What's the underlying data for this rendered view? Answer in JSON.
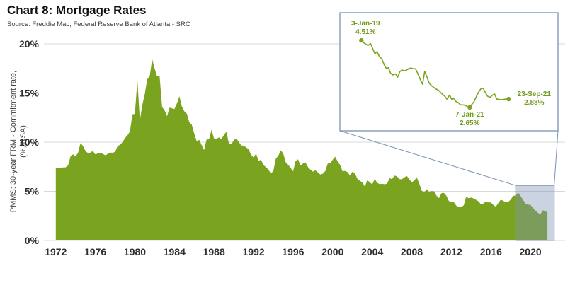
{
  "title": "Chart 8: Mortgage Rates",
  "source": "Source: Freddie Mac; Federal Reserve Bank of Atlanta - SRC",
  "y_axis_label_line1": "PMMS: 30-year FRM - Commitment rate,",
  "y_axis_label_line2": "(%, NSA)",
  "colors": {
    "area": "#7AA420",
    "annotation": "#6F9A1B",
    "grid": "#D8D8D8",
    "axis_text": "#2E2E2E",
    "callout": "#7C92B5",
    "highlight_fill": "rgba(124,146,181,0.40)"
  },
  "chart_data": {
    "type": "area",
    "title": "Chart 8: Mortgage Rates",
    "xlabel": "",
    "ylabel": "PMMS: 30-year FRM - Commitment rate, (%, NSA)",
    "ylim": [
      0,
      20
    ],
    "xlim": [
      1972,
      2021.75
    ],
    "grid": "horizontal",
    "x_tick_values": [
      1972,
      1976,
      1980,
      1984,
      1988,
      1992,
      1996,
      2000,
      2004,
      2008,
      2012,
      2016,
      2020
    ],
    "x_tick_labels": [
      "1972",
      "1976",
      "1980",
      "1984",
      "1988",
      "1992",
      "1996",
      "2000",
      "2004",
      "2008",
      "2012",
      "2016",
      "2020"
    ],
    "y_tick_values": [
      0,
      5,
      10,
      15,
      20
    ],
    "y_tick_labels": [
      "0%",
      "5%",
      "10%",
      "15%",
      "20%"
    ],
    "series": [
      {
        "name": "PMMS 30-year FRM commitment rate",
        "points": [
          [
            1972.0,
            7.33
          ],
          [
            1972.25,
            7.37
          ],
          [
            1972.5,
            7.4
          ],
          [
            1972.75,
            7.43
          ],
          [
            1973.0,
            7.44
          ],
          [
            1973.25,
            7.65
          ],
          [
            1973.5,
            8.58
          ],
          [
            1973.75,
            8.77
          ],
          [
            1974.0,
            8.54
          ],
          [
            1974.25,
            8.92
          ],
          [
            1974.5,
            9.89
          ],
          [
            1974.75,
            9.62
          ],
          [
            1975.0,
            9.1
          ],
          [
            1975.25,
            8.89
          ],
          [
            1975.5,
            8.94
          ],
          [
            1975.75,
            9.1
          ],
          [
            1976.0,
            8.76
          ],
          [
            1976.25,
            8.85
          ],
          [
            1976.5,
            8.93
          ],
          [
            1976.75,
            8.81
          ],
          [
            1977.0,
            8.67
          ],
          [
            1977.25,
            8.8
          ],
          [
            1977.5,
            8.94
          ],
          [
            1977.75,
            8.92
          ],
          [
            1978.0,
            9.02
          ],
          [
            1978.25,
            9.58
          ],
          [
            1978.5,
            9.74
          ],
          [
            1978.75,
            9.99
          ],
          [
            1979.0,
            10.41
          ],
          [
            1979.25,
            10.69
          ],
          [
            1979.5,
            11.09
          ],
          [
            1979.75,
            12.83
          ],
          [
            1980.0,
            12.88
          ],
          [
            1980.25,
            16.33
          ],
          [
            1980.5,
            12.19
          ],
          [
            1980.75,
            13.79
          ],
          [
            1981.0,
            14.9
          ],
          [
            1981.25,
            16.4
          ],
          [
            1981.5,
            16.7
          ],
          [
            1981.75,
            18.45
          ],
          [
            1982.0,
            17.48
          ],
          [
            1982.25,
            16.68
          ],
          [
            1982.5,
            16.7
          ],
          [
            1982.75,
            13.57
          ],
          [
            1983.0,
            13.25
          ],
          [
            1983.25,
            12.63
          ],
          [
            1983.5,
            13.5
          ],
          [
            1983.75,
            13.44
          ],
          [
            1984.0,
            13.37
          ],
          [
            1984.25,
            13.94
          ],
          [
            1984.5,
            14.67
          ],
          [
            1984.75,
            13.64
          ],
          [
            1985.0,
            13.14
          ],
          [
            1985.25,
            12.91
          ],
          [
            1985.5,
            12.03
          ],
          [
            1985.75,
            11.78
          ],
          [
            1986.0,
            10.88
          ],
          [
            1986.25,
            10.08
          ],
          [
            1986.5,
            10.23
          ],
          [
            1986.75,
            9.7
          ],
          [
            1987.0,
            9.2
          ],
          [
            1987.25,
            10.27
          ],
          [
            1987.5,
            10.28
          ],
          [
            1987.75,
            11.26
          ],
          [
            1988.0,
            10.38
          ],
          [
            1988.25,
            10.34
          ],
          [
            1988.5,
            10.49
          ],
          [
            1988.75,
            10.3
          ],
          [
            1989.0,
            10.73
          ],
          [
            1989.25,
            11.05
          ],
          [
            1989.5,
            9.88
          ],
          [
            1989.75,
            9.77
          ],
          [
            1990.0,
            10.2
          ],
          [
            1990.25,
            10.37
          ],
          [
            1990.5,
            10.04
          ],
          [
            1990.75,
            9.67
          ],
          [
            1991.0,
            9.64
          ],
          [
            1991.25,
            9.47
          ],
          [
            1991.5,
            9.28
          ],
          [
            1991.75,
            8.71
          ],
          [
            1992.0,
            8.43
          ],
          [
            1992.25,
            8.85
          ],
          [
            1992.5,
            8.1
          ],
          [
            1992.75,
            8.21
          ],
          [
            1993.0,
            7.68
          ],
          [
            1993.25,
            7.47
          ],
          [
            1993.5,
            7.21
          ],
          [
            1993.75,
            6.83
          ],
          [
            1994.0,
            7.06
          ],
          [
            1994.25,
            8.32
          ],
          [
            1994.5,
            8.61
          ],
          [
            1994.75,
            9.17
          ],
          [
            1995.0,
            8.83
          ],
          [
            1995.25,
            7.96
          ],
          [
            1995.5,
            7.7
          ],
          [
            1995.75,
            7.38
          ],
          [
            1996.0,
            7.03
          ],
          [
            1996.25,
            8.07
          ],
          [
            1996.5,
            8.25
          ],
          [
            1996.75,
            7.62
          ],
          [
            1997.0,
            7.82
          ],
          [
            1997.25,
            7.94
          ],
          [
            1997.5,
            7.47
          ],
          [
            1997.75,
            7.21
          ],
          [
            1998.0,
            6.99
          ],
          [
            1998.25,
            7.14
          ],
          [
            1998.5,
            6.92
          ],
          [
            1998.75,
            6.71
          ],
          [
            1999.0,
            6.79
          ],
          [
            1999.25,
            7.06
          ],
          [
            1999.5,
            7.82
          ],
          [
            1999.75,
            7.85
          ],
          [
            2000.0,
            8.21
          ],
          [
            2000.25,
            8.52
          ],
          [
            2000.5,
            8.03
          ],
          [
            2000.75,
            7.68
          ],
          [
            2001.0,
            7.03
          ],
          [
            2001.25,
            7.08
          ],
          [
            2001.5,
            6.95
          ],
          [
            2001.75,
            6.62
          ],
          [
            2002.0,
            6.99
          ],
          [
            2002.25,
            6.81
          ],
          [
            2002.5,
            6.29
          ],
          [
            2002.75,
            6.07
          ],
          [
            2003.0,
            5.92
          ],
          [
            2003.25,
            5.48
          ],
          [
            2003.5,
            6.14
          ],
          [
            2003.75,
            5.92
          ],
          [
            2004.0,
            5.71
          ],
          [
            2004.25,
            6.27
          ],
          [
            2004.5,
            5.87
          ],
          [
            2004.75,
            5.73
          ],
          [
            2005.0,
            5.77
          ],
          [
            2005.25,
            5.72
          ],
          [
            2005.5,
            5.77
          ],
          [
            2005.75,
            6.33
          ],
          [
            2006.0,
            6.25
          ],
          [
            2006.25,
            6.6
          ],
          [
            2006.5,
            6.52
          ],
          [
            2006.75,
            6.24
          ],
          [
            2007.0,
            6.22
          ],
          [
            2007.25,
            6.42
          ],
          [
            2007.5,
            6.57
          ],
          [
            2007.75,
            6.23
          ],
          [
            2008.0,
            5.92
          ],
          [
            2008.25,
            6.09
          ],
          [
            2008.5,
            6.43
          ],
          [
            2008.75,
            5.8
          ],
          [
            2009.0,
            5.07
          ],
          [
            2009.25,
            4.86
          ],
          [
            2009.5,
            5.22
          ],
          [
            2009.75,
            4.95
          ],
          [
            2010.0,
            5.03
          ],
          [
            2010.25,
            5.0
          ],
          [
            2010.5,
            4.56
          ],
          [
            2010.75,
            4.3
          ],
          [
            2011.0,
            4.81
          ],
          [
            2011.25,
            4.84
          ],
          [
            2011.5,
            4.55
          ],
          [
            2011.75,
            4.01
          ],
          [
            2012.0,
            3.92
          ],
          [
            2012.25,
            3.91
          ],
          [
            2012.5,
            3.55
          ],
          [
            2012.75,
            3.38
          ],
          [
            2013.0,
            3.41
          ],
          [
            2013.25,
            3.57
          ],
          [
            2013.5,
            4.44
          ],
          [
            2013.75,
            4.3
          ],
          [
            2014.0,
            4.36
          ],
          [
            2014.25,
            4.27
          ],
          [
            2014.5,
            4.13
          ],
          [
            2014.75,
            3.98
          ],
          [
            2015.0,
            3.67
          ],
          [
            2015.25,
            3.77
          ],
          [
            2015.5,
            3.98
          ],
          [
            2015.75,
            3.87
          ],
          [
            2016.0,
            3.87
          ],
          [
            2016.25,
            3.61
          ],
          [
            2016.5,
            3.44
          ],
          [
            2016.75,
            3.81
          ],
          [
            2017.0,
            4.15
          ],
          [
            2017.25,
            4.03
          ],
          [
            2017.5,
            3.89
          ],
          [
            2017.75,
            3.92
          ],
          [
            2018.0,
            4.15
          ],
          [
            2018.25,
            4.54
          ],
          [
            2018.5,
            4.57
          ],
          [
            2018.75,
            4.87
          ],
          [
            2019.0,
            4.51
          ],
          [
            2019.25,
            4.14
          ],
          [
            2019.5,
            3.75
          ],
          [
            2019.75,
            3.65
          ],
          [
            2020.0,
            3.62
          ],
          [
            2020.25,
            3.31
          ],
          [
            2020.5,
            3.03
          ],
          [
            2020.75,
            2.83
          ],
          [
            2021.0,
            2.65
          ],
          [
            2021.25,
            3.08
          ],
          [
            2021.5,
            2.98
          ],
          [
            2021.72,
            2.88
          ]
        ]
      }
    ],
    "highlight_region": {
      "x_start": 2018.5,
      "x_end": 2022.4,
      "y_top": 5.6
    },
    "inset": {
      "type": "line",
      "xlim": [
        2019.0,
        2021.72
      ],
      "points": [
        [
          2019.0,
          4.51
        ],
        [
          2019.04,
          4.45
        ],
        [
          2019.08,
          4.41
        ],
        [
          2019.12,
          4.37
        ],
        [
          2019.17,
          4.42
        ],
        [
          2019.21,
          4.28
        ],
        [
          2019.25,
          4.14
        ],
        [
          2019.29,
          4.2
        ],
        [
          2019.33,
          4.07
        ],
        [
          2019.38,
          3.99
        ],
        [
          2019.42,
          3.84
        ],
        [
          2019.46,
          3.73
        ],
        [
          2019.5,
          3.75
        ],
        [
          2019.54,
          3.6
        ],
        [
          2019.58,
          3.55
        ],
        [
          2019.63,
          3.58
        ],
        [
          2019.67,
          3.49
        ],
        [
          2019.71,
          3.64
        ],
        [
          2019.75,
          3.69
        ],
        [
          2019.79,
          3.66
        ],
        [
          2019.83,
          3.68
        ],
        [
          2019.88,
          3.73
        ],
        [
          2019.92,
          3.74
        ],
        [
          2019.96,
          3.72
        ],
        [
          2020.0,
          3.72
        ],
        [
          2020.04,
          3.6
        ],
        [
          2020.08,
          3.45
        ],
        [
          2020.13,
          3.29
        ],
        [
          2020.17,
          3.65
        ],
        [
          2020.21,
          3.5
        ],
        [
          2020.25,
          3.33
        ],
        [
          2020.29,
          3.26
        ],
        [
          2020.33,
          3.21
        ],
        [
          2020.38,
          3.16
        ],
        [
          2020.42,
          3.13
        ],
        [
          2020.46,
          3.07
        ],
        [
          2020.5,
          3.01
        ],
        [
          2020.54,
          2.96
        ],
        [
          2020.58,
          2.88
        ],
        [
          2020.63,
          2.99
        ],
        [
          2020.67,
          2.87
        ],
        [
          2020.71,
          2.9
        ],
        [
          2020.75,
          2.81
        ],
        [
          2020.79,
          2.78
        ],
        [
          2020.83,
          2.72
        ],
        [
          2020.88,
          2.72
        ],
        [
          2020.92,
          2.71
        ],
        [
          2020.96,
          2.67
        ],
        [
          2021.0,
          2.65
        ],
        [
          2021.04,
          2.73
        ],
        [
          2021.08,
          2.81
        ],
        [
          2021.13,
          2.97
        ],
        [
          2021.17,
          3.09
        ],
        [
          2021.21,
          3.17
        ],
        [
          2021.25,
          3.18
        ],
        [
          2021.29,
          3.06
        ],
        [
          2021.33,
          2.96
        ],
        [
          2021.38,
          2.93
        ],
        [
          2021.42,
          2.99
        ],
        [
          2021.46,
          3.02
        ],
        [
          2021.5,
          2.88
        ],
        [
          2021.54,
          2.87
        ],
        [
          2021.58,
          2.86
        ],
        [
          2021.63,
          2.87
        ],
        [
          2021.67,
          2.88
        ],
        [
          2021.72,
          2.88
        ]
      ],
      "annotations": [
        {
          "label": "3-Jan-19",
          "value": "4.51%",
          "x": 2019.0,
          "y": 4.51
        },
        {
          "label": "7-Jan-21",
          "value": "2.65%",
          "x": 2021.0,
          "y": 2.65
        },
        {
          "label": "23-Sep-21",
          "value": "2.88%",
          "x": 2021.72,
          "y": 2.88
        }
      ]
    }
  }
}
